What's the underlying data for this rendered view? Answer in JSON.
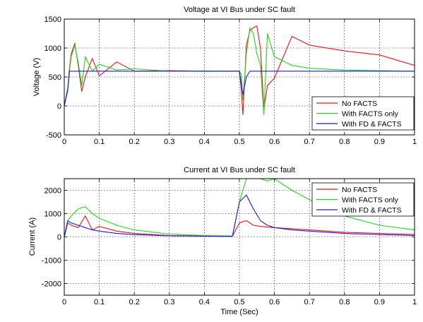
{
  "chart_data": [
    {
      "type": "line",
      "title": "Voltage at VI Bus under SC fault",
      "xlabel": "",
      "ylabel": "Voltage (V)",
      "xlim": [
        0,
        1
      ],
      "ylim": [
        -500,
        1500
      ],
      "xticks": [
        "0",
        "0.1",
        "0.2",
        "0.3",
        "0.4",
        "0.5",
        "0.6",
        "0.7",
        "0.8",
        "0.9",
        "1"
      ],
      "yticks": [
        "-500",
        "0",
        "500",
        "1000",
        "1500"
      ],
      "grid": true,
      "legend_position": "bottom-right",
      "x": [
        0,
        0.01,
        0.015,
        0.02,
        0.03,
        0.04,
        0.05,
        0.06,
        0.08,
        0.1,
        0.15,
        0.2,
        0.3,
        0.4,
        0.48,
        0.5,
        0.505,
        0.51,
        0.52,
        0.53,
        0.54,
        0.55,
        0.56,
        0.57,
        0.58,
        0.6,
        0.65,
        0.7,
        0.8,
        0.9,
        1.0
      ],
      "series": [
        {
          "name": "No FACTS",
          "color": "#e8151b",
          "values": [
            0,
            300,
            650,
            900,
            1080,
            700,
            250,
            500,
            820,
            520,
            760,
            600,
            610,
            600,
            600,
            600,
            300,
            -150,
            1050,
            1300,
            1350,
            1380,
            1000,
            -50,
            350,
            480,
            1200,
            1050,
            950,
            880,
            700
          ]
        },
        {
          "name": "With FACTS only",
          "color": "#22d41e",
          "values": [
            0,
            250,
            600,
            850,
            1050,
            750,
            350,
            850,
            600,
            720,
            620,
            640,
            600,
            605,
            600,
            600,
            550,
            100,
            900,
            1350,
            1250,
            900,
            700,
            -150,
            1250,
            850,
            700,
            650,
            620,
            610,
            600
          ]
        },
        {
          "name": "With FD & FACTS",
          "color": "#1a1ae0",
          "values": [
            0,
            300,
            600,
            600,
            600,
            600,
            600,
            600,
            600,
            600,
            600,
            600,
            600,
            600,
            600,
            600,
            400,
            200,
            500,
            600,
            600,
            600,
            600,
            600,
            600,
            600,
            600,
            600,
            600,
            600,
            600
          ]
        }
      ]
    },
    {
      "type": "line",
      "title": "Current at VI Bus under SC fault",
      "xlabel": "Time (Sec)",
      "ylabel": "Current (A)",
      "xlim": [
        0,
        1
      ],
      "ylim": [
        -2500,
        2500
      ],
      "xticks": [
        "0",
        "0.1",
        "0.2",
        "0.3",
        "0.4",
        "0.5",
        "0.6",
        "0.7",
        "0.8",
        "0.9",
        "1"
      ],
      "yticks": [
        "-2000",
        "-1000",
        "0",
        "1000",
        "2000"
      ],
      "grid": true,
      "legend_position": "top-right",
      "x": [
        0,
        0.01,
        0.02,
        0.04,
        0.06,
        0.08,
        0.1,
        0.15,
        0.2,
        0.3,
        0.4,
        0.48,
        0.5,
        0.52,
        0.54,
        0.56,
        0.58,
        0.6,
        0.65,
        0.7,
        0.8,
        0.9,
        1.0
      ],
      "series": [
        {
          "name": "No FACTS",
          "color": "#e8151b",
          "values": [
            0,
            600,
            500,
            400,
            900,
            300,
            450,
            250,
            150,
            60,
            40,
            30,
            600,
            700,
            500,
            450,
            420,
            400,
            350,
            300,
            200,
            150,
            100
          ]
        },
        {
          "name": "With FACTS only",
          "color": "#22d41e",
          "values": [
            0,
            700,
            900,
            1200,
            1300,
            1000,
            800,
            500,
            300,
            120,
            60,
            40,
            1500,
            2500,
            2500,
            2500,
            2400,
            2500,
            2000,
            1600,
            900,
            500,
            300
          ]
        },
        {
          "name": "With FD & FACTS",
          "color": "#1a1ae0",
          "values": [
            0,
            700,
            600,
            500,
            400,
            300,
            250,
            150,
            100,
            50,
            30,
            20,
            1500,
            1800,
            1200,
            700,
            500,
            400,
            300,
            250,
            150,
            100,
            60
          ]
        }
      ]
    }
  ]
}
